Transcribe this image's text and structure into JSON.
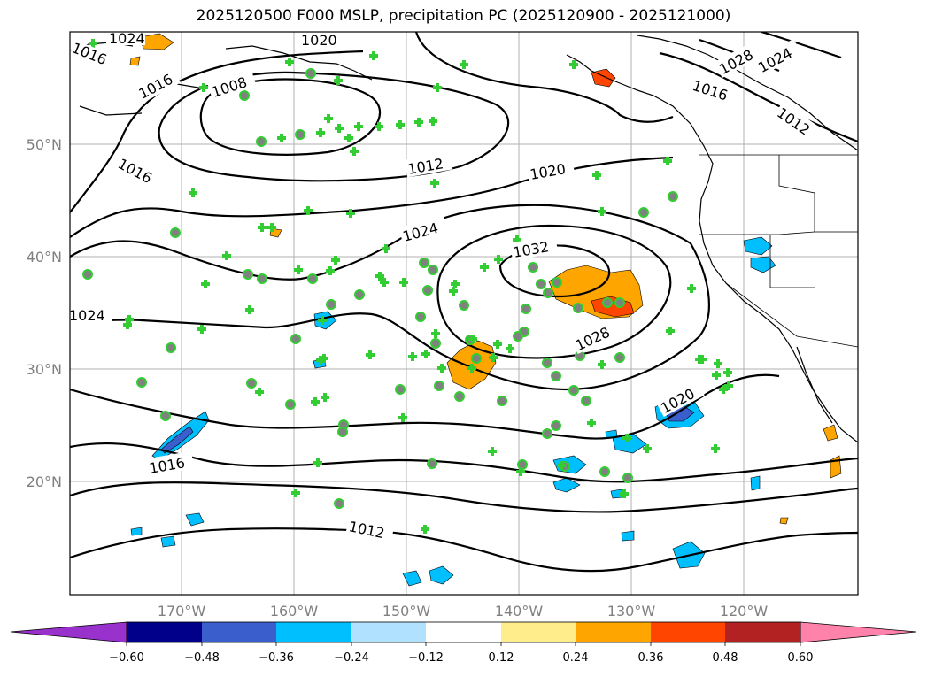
{
  "title": "2025120500 F000 MSLP, precipitation PC (2025120900 - 2025121000)",
  "map": {
    "lat_labels": [
      "50°N",
      "40°N",
      "30°N",
      "20°N"
    ],
    "lon_labels": [
      "170°W",
      "160°W",
      "150°W",
      "140°W",
      "130°W",
      "120°W"
    ],
    "isobar_labels": [
      "1024",
      "1016",
      "1020",
      "1016",
      "1008",
      "1016",
      "1012",
      "1020",
      "1024",
      "1032",
      "1028",
      "1024",
      "1020",
      "1016",
      "1012",
      "1016",
      "1028",
      "1024",
      "1012"
    ]
  },
  "colorbar": {
    "ticks": [
      "−0.60",
      "−0.48",
      "−0.36",
      "−0.24",
      "−0.12",
      "0.12",
      "0.24",
      "0.36",
      "0.48",
      "0.60"
    ],
    "colors": [
      "#9932CC",
      "#00008B",
      "#3A5FCD",
      "#00BFFF",
      "#B0E2FF",
      "#FFFFFF",
      "#FFEC8B",
      "#FFA500",
      "#FF4500",
      "#B22222",
      "#FF82AB"
    ]
  }
}
